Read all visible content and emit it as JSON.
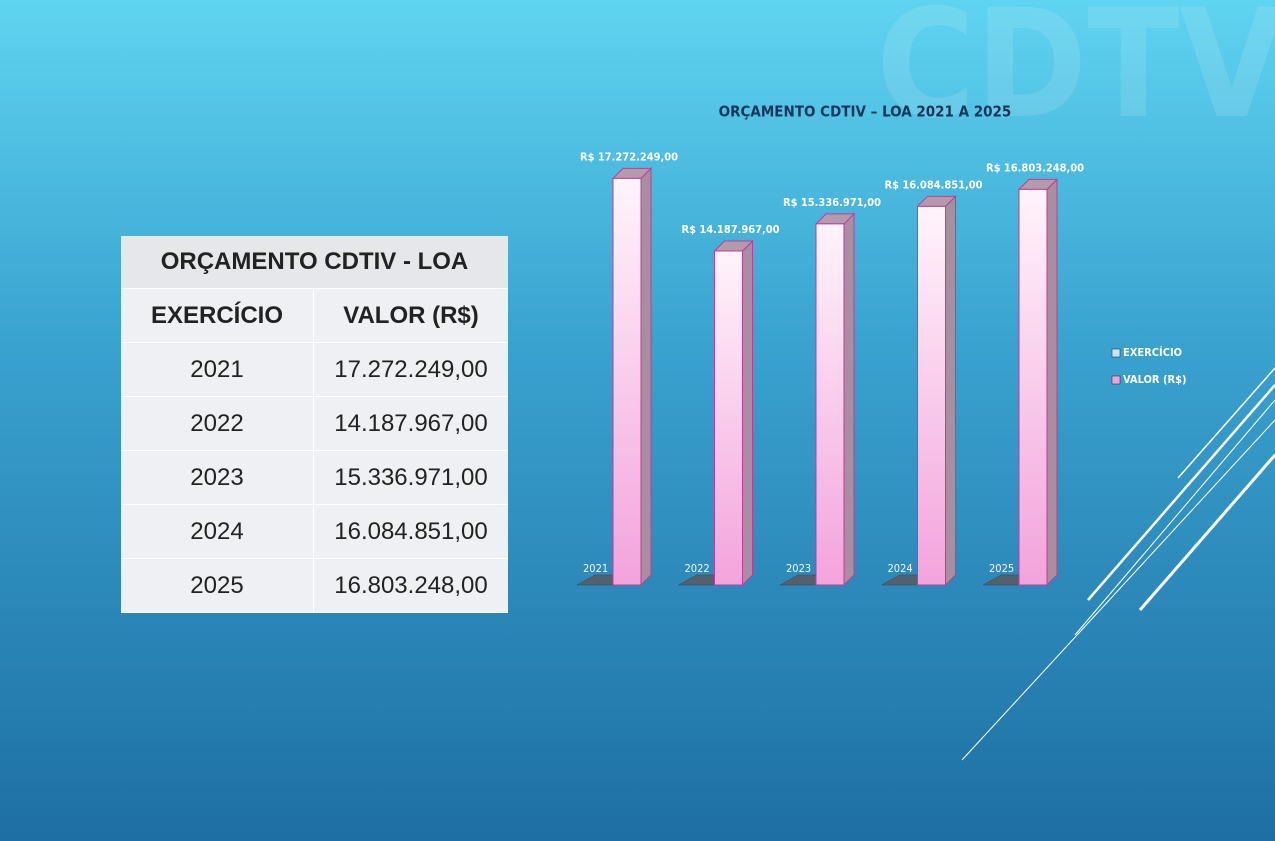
{
  "logo": "CDTV",
  "table": {
    "title": "ORÇAMENTO CDTIV - LOA",
    "header": [
      "EXERCÍCIO",
      "VALOR (R$)"
    ],
    "rows": [
      [
        "2021",
        "17.272.249,00"
      ],
      [
        "2022",
        "14.187.967,00"
      ],
      [
        "2023",
        "15.336.971,00"
      ],
      [
        "2024",
        "16.084.851,00"
      ],
      [
        "2025",
        "16.803.248,00"
      ]
    ]
  },
  "chart_data": {
    "type": "bar3d",
    "title": "ORÇAMENTO CDTIV  – LOA 2021 A 2025",
    "categories": [
      null,
      null,
      null,
      null,
      null
    ],
    "ylim": [
      0,
      17500000
    ],
    "legend": "right",
    "series": [
      {
        "name": "EXERCÍCIO",
        "color": "#55606e",
        "legend_color": "#c9e4f2",
        "values": [
          2021,
          2022,
          2023,
          2024,
          2025
        ]
      },
      {
        "name": "VALOR (R$)",
        "color": "#fbd3ee",
        "legend_color": "#f3a3dc",
        "values": [
          17272249,
          14187967,
          15336971,
          16084851,
          16803248
        ],
        "value_labels": [
          "R$ 17.272.249,00",
          "R$ 14.187.967,00",
          "R$ 15.336.971,00",
          "R$ 16.084.851,00",
          "R$ 16.803.248,00"
        ]
      }
    ]
  }
}
